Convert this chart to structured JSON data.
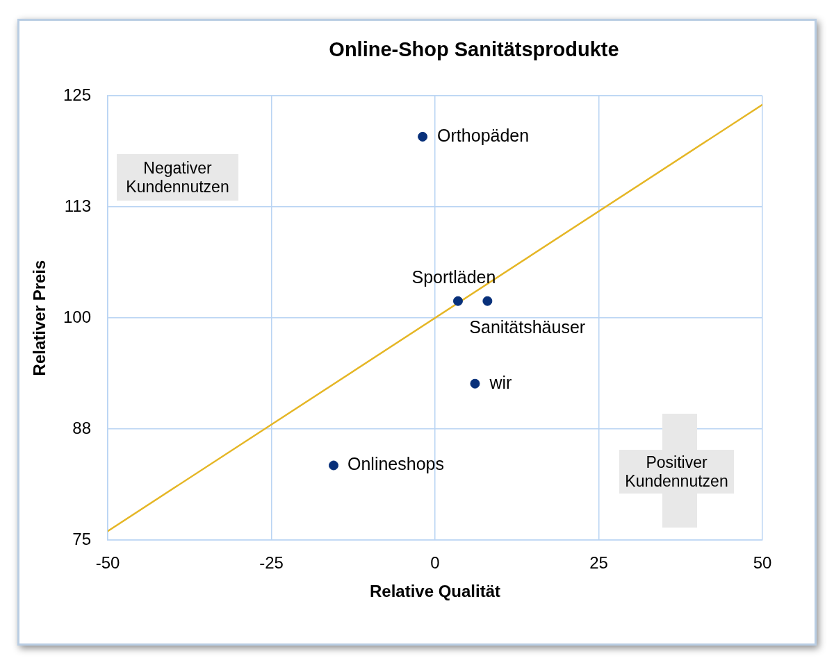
{
  "chart_data": {
    "type": "scatter",
    "title": "Online-Shop Sanitätsprodukte",
    "xlabel": "Relative Qualität",
    "ylabel": "Relativer Preis",
    "xlim": [
      -50,
      50
    ],
    "xticks": [
      -50,
      -25,
      0,
      25,
      50
    ],
    "ylim": [
      75,
      125
    ],
    "yticks": [
      75,
      {
        "value": 87.5,
        "label": "88"
      },
      100,
      {
        "value": 112.5,
        "label": "113"
      },
      125
    ],
    "grid": true,
    "marker": "circle",
    "series": [
      {
        "name": "Orthopäden",
        "color": "#08307a",
        "x": [
          -1.9
        ],
        "values": [
          120.4
        ]
      },
      {
        "name": "Sportläden",
        "color": "#08307a",
        "x": [
          3.5
        ],
        "values": [
          101.9
        ]
      },
      {
        "name": "Sanitätshäuser",
        "color": "#08307a",
        "x": [
          8
        ],
        "values": [
          101.9
        ]
      },
      {
        "name": "wir",
        "color": "#08307a",
        "x": [
          6.1
        ],
        "values": [
          92.6
        ]
      },
      {
        "name": "Onlineshops",
        "color": "#08307a",
        "x": [
          -15.5
        ],
        "values": [
          83.4
        ]
      },
      {
        "type": "line",
        "color": "#e5b625",
        "marker": "none",
        "x": [
          -50,
          50
        ],
        "values": [
          76,
          124
        ]
      }
    ],
    "annotations": [
      "Negativer Kundennutzen",
      "Positiver Kundennutzen"
    ]
  }
}
